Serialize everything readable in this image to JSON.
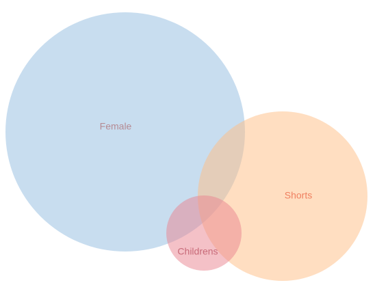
{
  "diagram": {
    "type": "venn",
    "sets": [
      {
        "id": "female",
        "label": "Female",
        "fill": "#92bbe0",
        "label_color": "#b58b94"
      },
      {
        "id": "shorts",
        "label": "Shorts",
        "fill": "#ffbe84",
        "label_color": "#f08060"
      },
      {
        "id": "childrens",
        "label": "Childrens",
        "fill": "#e9838f",
        "label_color": "#c86a78"
      }
    ]
  }
}
